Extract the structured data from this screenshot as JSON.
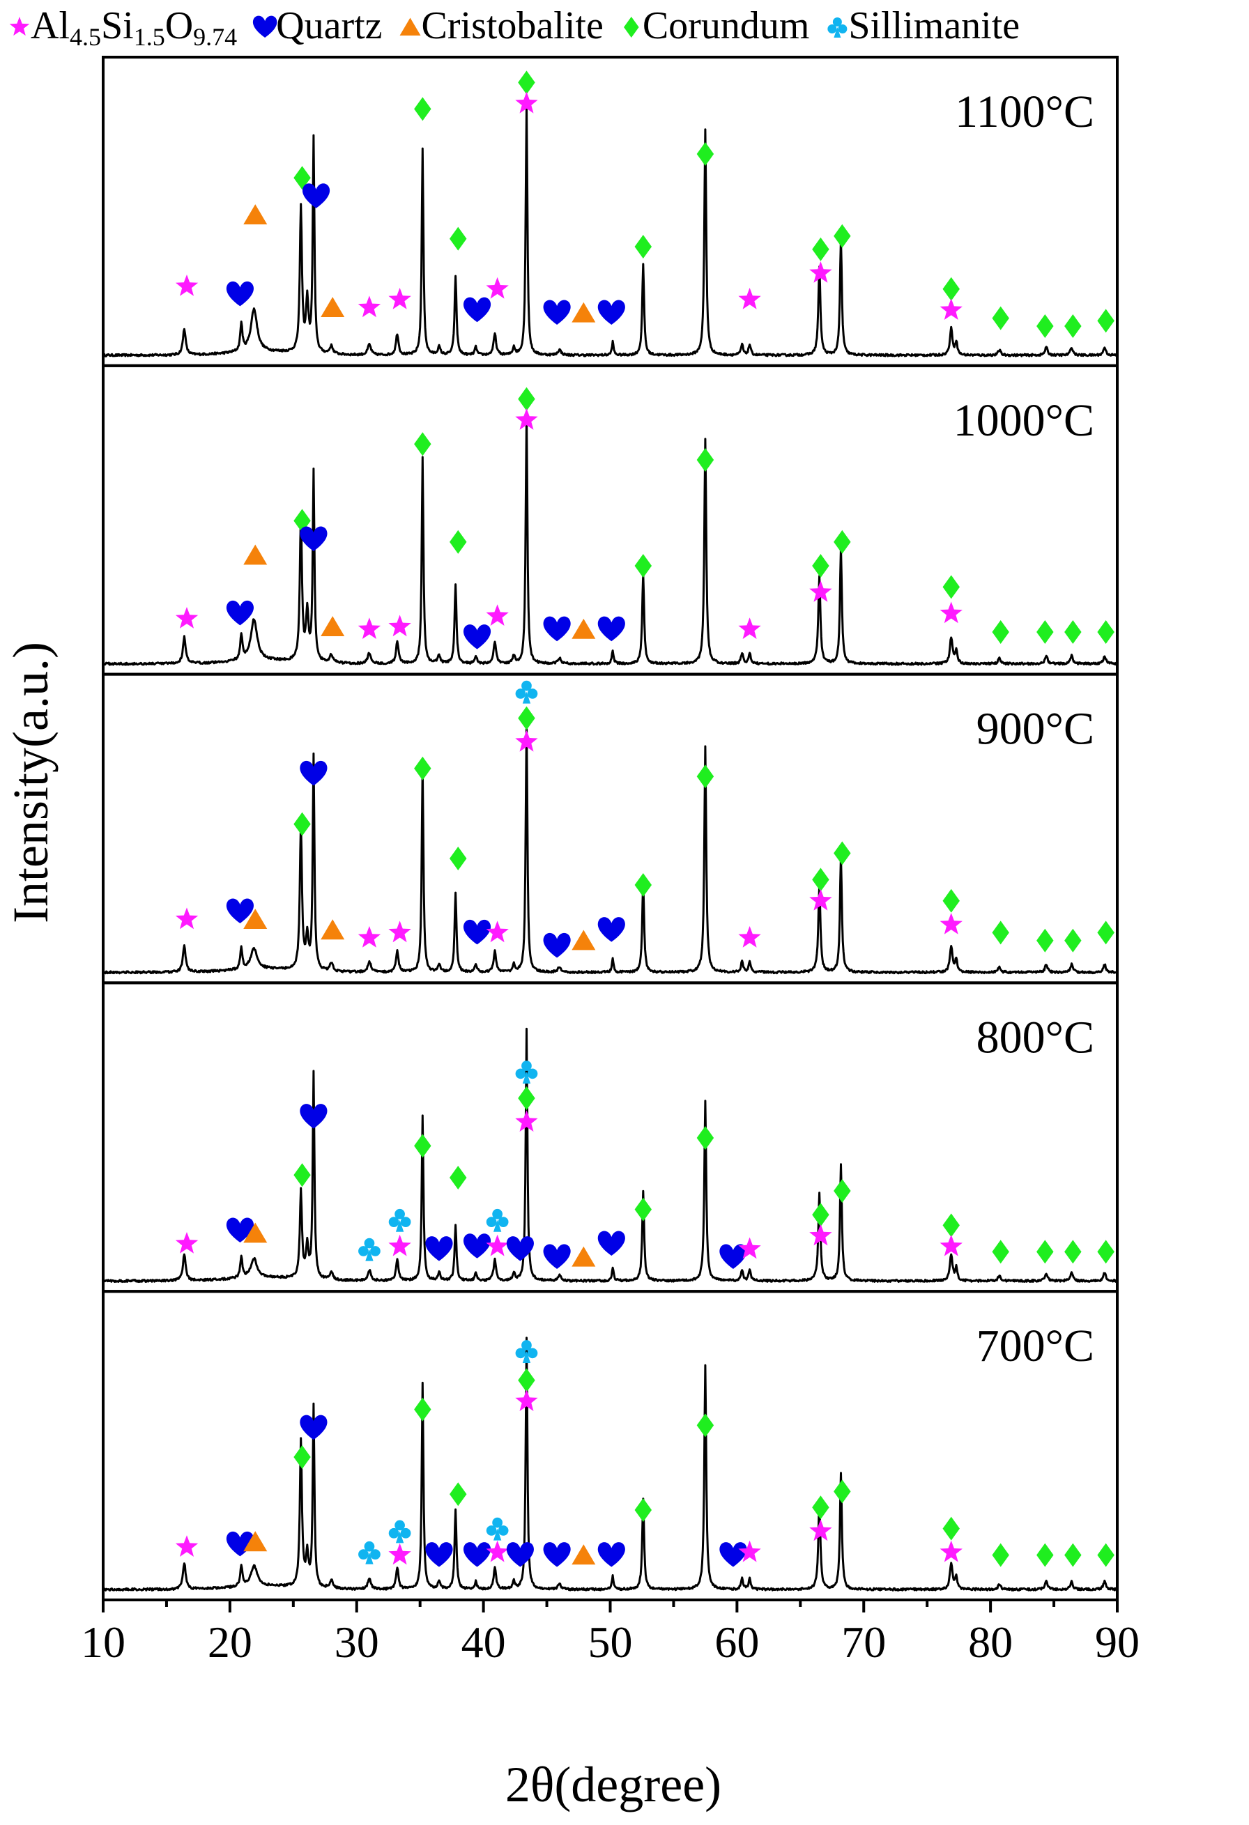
{
  "chart_data": {
    "type": "line",
    "title": "",
    "xlabel": "2θ(degree)",
    "ylabel": "Intensity(a.u.)",
    "xlim": [
      10,
      90
    ],
    "xticks": [
      10,
      20,
      30,
      40,
      50,
      60,
      70,
      80,
      90
    ],
    "legend": {
      "placement": "top",
      "entries": [
        {
          "key": "mullite",
          "symbol": "star",
          "color": "#ff1aff",
          "label_parts": [
            [
              "Al",
              ""
            ],
            [
              "4.5",
              "sub"
            ],
            [
              "Si",
              ""
            ],
            [
              "1.5",
              "sub"
            ],
            [
              "O",
              ""
            ],
            [
              "9.74",
              "sub"
            ]
          ]
        },
        {
          "key": "quartz",
          "symbol": "heart",
          "color": "#0000e6",
          "label": "Quartz"
        },
        {
          "key": "cristobalite",
          "symbol": "triangle",
          "color": "#f5820a",
          "label": "Cristobalite"
        },
        {
          "key": "corundum",
          "symbol": "diamond",
          "color": "#1fee1f",
          "label": "Corundum"
        },
        {
          "key": "sillimanite",
          "symbol": "club",
          "color": "#10b4f0",
          "label": "Sillimanite"
        }
      ]
    },
    "peaks": [
      {
        "x": 16.4,
        "h": 0.1,
        "w": 0.13
      },
      {
        "x": 20.9,
        "h": 0.08,
        "w": 0.1
      },
      {
        "x": 21.9,
        "h": 0.12,
        "w": 0.3
      },
      {
        "x": 25.6,
        "h": 0.55,
        "w": 0.1
      },
      {
        "x": 26.1,
        "h": 0.12,
        "w": 0.12
      },
      {
        "x": 26.6,
        "h": 0.62,
        "w": 0.08
      },
      {
        "x": 28.0,
        "h": 0.03,
        "w": 0.15
      },
      {
        "x": 31.0,
        "h": 0.04,
        "w": 0.15
      },
      {
        "x": 33.2,
        "h": 0.08,
        "w": 0.12
      },
      {
        "x": 35.2,
        "h": 0.78,
        "w": 0.08
      },
      {
        "x": 36.5,
        "h": 0.03,
        "w": 0.12
      },
      {
        "x": 37.8,
        "h": 0.3,
        "w": 0.09
      },
      {
        "x": 39.4,
        "h": 0.03,
        "w": 0.1
      },
      {
        "x": 40.9,
        "h": 0.08,
        "w": 0.12
      },
      {
        "x": 42.4,
        "h": 0.03,
        "w": 0.1
      },
      {
        "x": 43.4,
        "h": 0.95,
        "w": 0.08
      },
      {
        "x": 46.0,
        "h": 0.02,
        "w": 0.15
      },
      {
        "x": 50.2,
        "h": 0.05,
        "w": 0.08
      },
      {
        "x": 52.6,
        "h": 0.34,
        "w": 0.09
      },
      {
        "x": 57.5,
        "h": 0.85,
        "w": 0.09
      },
      {
        "x": 60.4,
        "h": 0.04,
        "w": 0.1
      },
      {
        "x": 61.0,
        "h": 0.04,
        "w": 0.1
      },
      {
        "x": 66.5,
        "h": 0.33,
        "w": 0.1
      },
      {
        "x": 68.2,
        "h": 0.44,
        "w": 0.09
      },
      {
        "x": 76.9,
        "h": 0.1,
        "w": 0.12
      },
      {
        "x": 77.3,
        "h": 0.05,
        "w": 0.1
      },
      {
        "x": 80.7,
        "h": 0.02,
        "w": 0.12
      },
      {
        "x": 84.4,
        "h": 0.03,
        "w": 0.12
      },
      {
        "x": 86.4,
        "h": 0.03,
        "w": 0.12
      },
      {
        "x": 89.0,
        "h": 0.03,
        "w": 0.12
      }
    ],
    "series": [
      {
        "name": "1100°C",
        "label": "1100°C",
        "scales": {
          "21.9": 1.35,
          "20.9": 1.3,
          "26.1": 1.6,
          "26.6": 1.3
        },
        "markers": [
          [
            "mullite",
            16.6,
            0.26
          ],
          [
            "quartz",
            20.8,
            0.23
          ],
          [
            "cristobalite",
            22.0,
            0.53
          ],
          [
            "corundum",
            25.7,
            0.67
          ],
          [
            "quartz",
            26.8,
            0.6
          ],
          [
            "cristobalite",
            28.1,
            0.18
          ],
          [
            "mullite",
            31.0,
            0.18
          ],
          [
            "mullite",
            33.4,
            0.21
          ],
          [
            "corundum",
            35.2,
            0.93
          ],
          [
            "corundum",
            38.0,
            0.44
          ],
          [
            "quartz",
            39.5,
            0.17
          ],
          [
            "mullite",
            41.1,
            0.25
          ],
          [
            "corundum",
            43.4,
            1.03
          ],
          [
            "mullite",
            43.4,
            0.95
          ],
          [
            "quartz",
            45.8,
            0.16
          ],
          [
            "cristobalite",
            47.9,
            0.16
          ],
          [
            "quartz",
            50.1,
            0.16
          ],
          [
            "corundum",
            52.6,
            0.41
          ],
          [
            "corundum",
            57.5,
            0.76
          ],
          [
            "mullite",
            61.0,
            0.21
          ],
          [
            "corundum",
            66.6,
            0.4
          ],
          [
            "mullite",
            66.6,
            0.31
          ],
          [
            "corundum",
            68.3,
            0.45
          ],
          [
            "corundum",
            76.9,
            0.25
          ],
          [
            "mullite",
            76.9,
            0.17
          ],
          [
            "corundum",
            80.8,
            0.14
          ],
          [
            "corundum",
            84.3,
            0.11
          ],
          [
            "corundum",
            86.5,
            0.11
          ],
          [
            "corundum",
            89.1,
            0.13
          ]
        ]
      },
      {
        "name": "1000°C",
        "label": "1000°C",
        "scales": {
          "21.9": 1.3,
          "20.9": 1.2,
          "26.1": 1.5,
          "26.6": 1.15
        },
        "markers": [
          [
            "mullite",
            16.6,
            0.17
          ],
          [
            "quartz",
            20.8,
            0.19
          ],
          [
            "cristobalite",
            22.0,
            0.41
          ],
          [
            "corundum",
            25.7,
            0.54
          ],
          [
            "quartz",
            26.6,
            0.47
          ],
          [
            "cristobalite",
            28.1,
            0.14
          ],
          [
            "mullite",
            31.0,
            0.13
          ],
          [
            "mullite",
            33.4,
            0.14
          ],
          [
            "corundum",
            35.2,
            0.83
          ],
          [
            "corundum",
            38.0,
            0.46
          ],
          [
            "quartz",
            39.5,
            0.1
          ],
          [
            "mullite",
            41.1,
            0.18
          ],
          [
            "corundum",
            43.4,
            1.0
          ],
          [
            "mullite",
            43.4,
            0.92
          ],
          [
            "quartz",
            45.8,
            0.13
          ],
          [
            "cristobalite",
            47.9,
            0.13
          ],
          [
            "quartz",
            50.1,
            0.13
          ],
          [
            "corundum",
            52.6,
            0.37
          ],
          [
            "corundum",
            57.5,
            0.77
          ],
          [
            "mullite",
            61.0,
            0.13
          ],
          [
            "corundum",
            66.6,
            0.37
          ],
          [
            "mullite",
            66.6,
            0.27
          ],
          [
            "corundum",
            68.3,
            0.46
          ],
          [
            "corundum",
            76.9,
            0.29
          ],
          [
            "mullite",
            76.9,
            0.19
          ],
          [
            "corundum",
            80.8,
            0.12
          ],
          [
            "corundum",
            84.3,
            0.12
          ],
          [
            "corundum",
            86.5,
            0.12
          ],
          [
            "corundum",
            89.1,
            0.12
          ]
        ]
      },
      {
        "name": "900°C",
        "label": "900°C",
        "scales": {
          "21.9": 0.65,
          "26.6": 1.3
        },
        "markers": [
          [
            "mullite",
            16.6,
            0.2
          ],
          [
            "quartz",
            20.8,
            0.23
          ],
          [
            "cristobalite",
            22.0,
            0.2
          ],
          [
            "corundum",
            25.7,
            0.56
          ],
          [
            "quartz",
            26.6,
            0.75
          ],
          [
            "cristobalite",
            28.1,
            0.16
          ],
          [
            "mullite",
            31.0,
            0.13
          ],
          [
            "mullite",
            33.4,
            0.15
          ],
          [
            "corundum",
            35.2,
            0.77
          ],
          [
            "corundum",
            38.0,
            0.43
          ],
          [
            "quartz",
            39.5,
            0.15
          ],
          [
            "mullite",
            41.1,
            0.15
          ],
          [
            "sillimanite",
            43.4,
            1.06
          ],
          [
            "corundum",
            43.4,
            0.96
          ],
          [
            "mullite",
            43.4,
            0.87
          ],
          [
            "quartz",
            45.8,
            0.1
          ],
          [
            "cristobalite",
            47.9,
            0.12
          ],
          [
            "quartz",
            50.1,
            0.16
          ],
          [
            "corundum",
            52.6,
            0.33
          ],
          [
            "corundum",
            57.5,
            0.74
          ],
          [
            "mullite",
            61.0,
            0.13
          ],
          [
            "corundum",
            66.6,
            0.35
          ],
          [
            "mullite",
            66.6,
            0.27
          ],
          [
            "corundum",
            68.3,
            0.45
          ],
          [
            "corundum",
            76.9,
            0.27
          ],
          [
            "mullite",
            76.9,
            0.18
          ],
          [
            "corundum",
            80.8,
            0.15
          ],
          [
            "corundum",
            84.3,
            0.12
          ],
          [
            "corundum",
            86.5,
            0.12
          ],
          [
            "corundum",
            89.1,
            0.15
          ]
        ]
      },
      {
        "name": "800°C",
        "label": "800°C",
        "scales": {
          "21.9": 0.6,
          "25.6": 0.6,
          "26.6": 1.25,
          "35.2": 0.8,
          "37.8": 0.7,
          "57.5": 0.8
        },
        "markers": [
          [
            "mullite",
            16.6,
            0.14
          ],
          [
            "quartz",
            20.8,
            0.19
          ],
          [
            "cristobalite",
            22.0,
            0.18
          ],
          [
            "corundum",
            25.7,
            0.4
          ],
          [
            "quartz",
            26.6,
            0.62
          ],
          [
            "sillimanite",
            31.0,
            0.12
          ],
          [
            "sillimanite",
            33.4,
            0.23
          ],
          [
            "mullite",
            33.4,
            0.13
          ],
          [
            "corundum",
            35.2,
            0.51
          ],
          [
            "quartz",
            36.5,
            0.12
          ],
          [
            "corundum",
            38.0,
            0.39
          ],
          [
            "quartz",
            39.5,
            0.13
          ],
          [
            "mullite",
            41.1,
            0.13
          ],
          [
            "sillimanite",
            41.1,
            0.23
          ],
          [
            "quartz",
            42.9,
            0.12
          ],
          [
            "sillimanite",
            43.4,
            0.79
          ],
          [
            "corundum",
            43.4,
            0.69
          ],
          [
            "mullite",
            43.4,
            0.6
          ],
          [
            "quartz",
            45.8,
            0.09
          ],
          [
            "cristobalite",
            47.9,
            0.09
          ],
          [
            "quartz",
            50.1,
            0.14
          ],
          [
            "corundum",
            52.6,
            0.27
          ],
          [
            "corundum",
            57.5,
            0.54
          ],
          [
            "quartz",
            59.7,
            0.09
          ],
          [
            "mullite",
            61.0,
            0.12
          ],
          [
            "corundum",
            66.6,
            0.25
          ],
          [
            "mullite",
            66.6,
            0.17
          ],
          [
            "corundum",
            68.3,
            0.34
          ],
          [
            "corundum",
            76.9,
            0.21
          ],
          [
            "mullite",
            76.9,
            0.13
          ],
          [
            "corundum",
            80.8,
            0.11
          ],
          [
            "corundum",
            84.3,
            0.11
          ],
          [
            "corundum",
            86.5,
            0.11
          ],
          [
            "corundum",
            89.1,
            0.11
          ]
        ]
      },
      {
        "name": "700°C",
        "label": "700°C",
        "scales": {
          "21.9": 0.65,
          "26.6": 1.1
        },
        "markers": [
          [
            "mullite",
            16.6,
            0.16
          ],
          [
            "quartz",
            20.8,
            0.17
          ],
          [
            "cristobalite",
            22.0,
            0.18
          ],
          [
            "corundum",
            25.7,
            0.5
          ],
          [
            "quartz",
            26.6,
            0.61
          ],
          [
            "sillimanite",
            31.0,
            0.14
          ],
          [
            "sillimanite",
            33.4,
            0.22
          ],
          [
            "mullite",
            33.4,
            0.13
          ],
          [
            "corundum",
            35.2,
            0.68
          ],
          [
            "quartz",
            36.5,
            0.13
          ],
          [
            "corundum",
            38.0,
            0.36
          ],
          [
            "quartz",
            39.5,
            0.13
          ],
          [
            "mullite",
            41.1,
            0.14
          ],
          [
            "sillimanite",
            41.1,
            0.23
          ],
          [
            "quartz",
            42.9,
            0.13
          ],
          [
            "sillimanite",
            43.4,
            0.9
          ],
          [
            "corundum",
            43.4,
            0.79
          ],
          [
            "mullite",
            43.4,
            0.71
          ],
          [
            "quartz",
            45.8,
            0.13
          ],
          [
            "cristobalite",
            47.9,
            0.13
          ],
          [
            "quartz",
            50.1,
            0.13
          ],
          [
            "corundum",
            52.6,
            0.3
          ],
          [
            "corundum",
            57.5,
            0.62
          ],
          [
            "quartz",
            59.7,
            0.13
          ],
          [
            "mullite",
            61.0,
            0.14
          ],
          [
            "corundum",
            66.6,
            0.31
          ],
          [
            "mullite",
            66.6,
            0.22
          ],
          [
            "corundum",
            68.3,
            0.37
          ],
          [
            "corundum",
            76.9,
            0.23
          ],
          [
            "mullite",
            76.9,
            0.14
          ],
          [
            "corundum",
            80.8,
            0.13
          ],
          [
            "corundum",
            84.3,
            0.13
          ],
          [
            "corundum",
            86.5,
            0.13
          ],
          [
            "corundum",
            89.1,
            0.13
          ]
        ]
      }
    ]
  },
  "colors": {
    "temperature_label": "#ff0000",
    "line": "#000000"
  }
}
